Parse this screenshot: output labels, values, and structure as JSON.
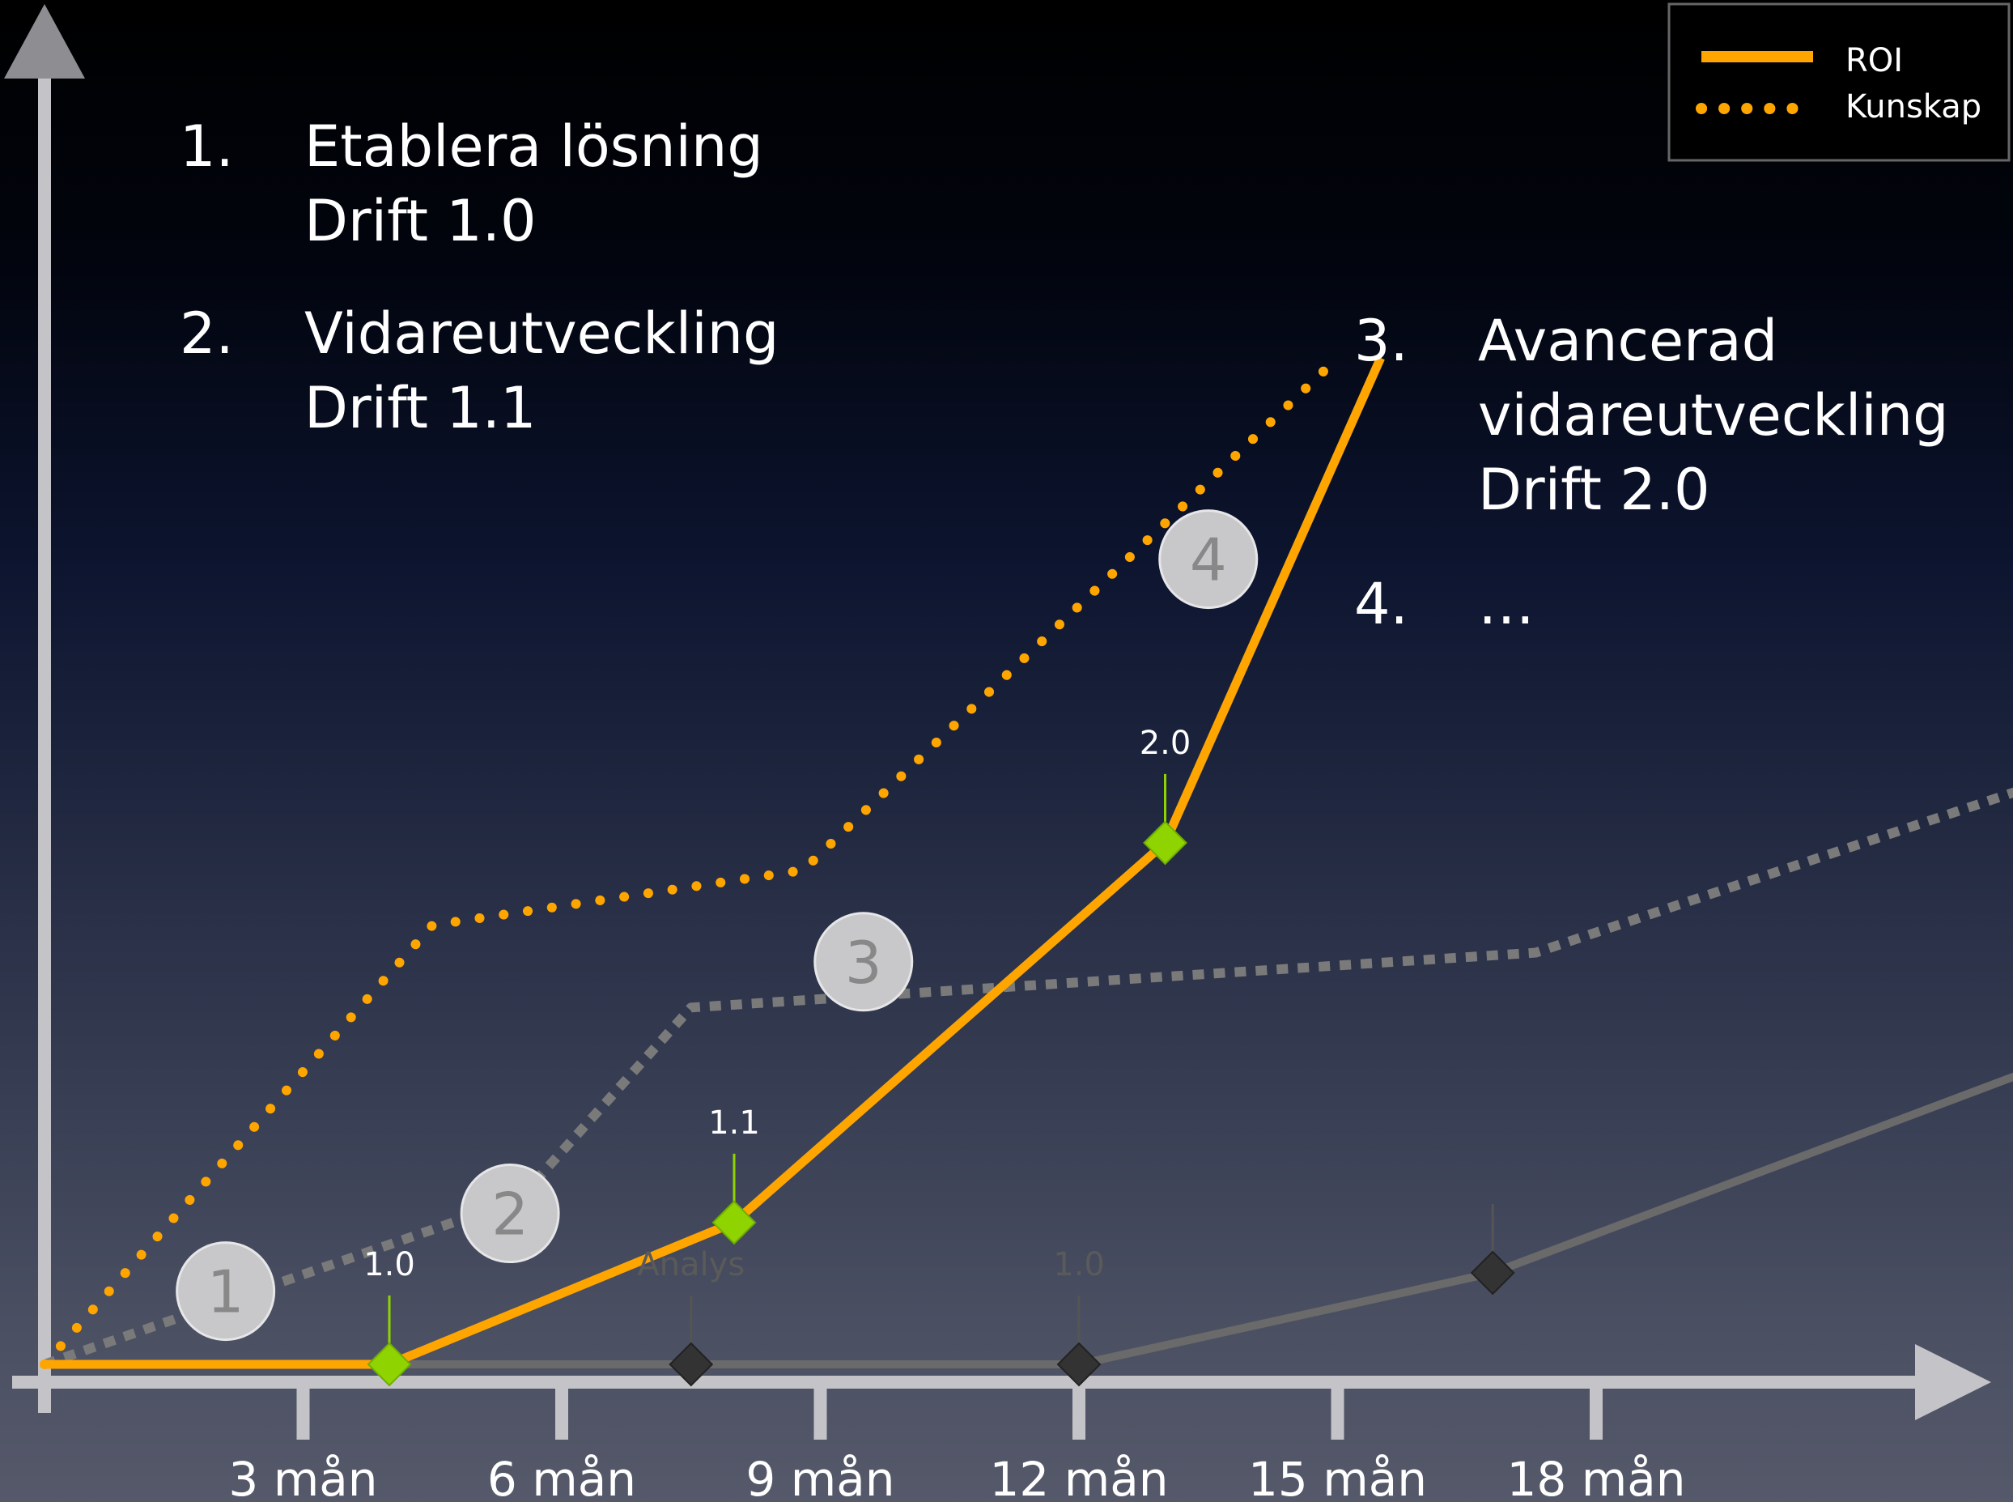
{
  "chart_data": {
    "type": "line",
    "x_tick_labels": [
      "3 mån",
      "6 mån",
      "9 mån",
      "12 mån",
      "15 mån",
      "18 mån"
    ],
    "x_ticks": [
      3,
      6,
      9,
      12,
      15,
      18
    ],
    "xlim": [
      0,
      23
    ],
    "ylim": [
      0,
      100
    ],
    "legend": {
      "placement": "top-right",
      "items": [
        {
          "label": "ROI",
          "style": "solid",
          "color": "#ffa500"
        },
        {
          "label": "Kunskap",
          "style": "dotted",
          "color": "#ffa500"
        }
      ]
    },
    "series": [
      {
        "name": "ROI",
        "style": "solid",
        "color": "#ffa500",
        "x": [
          0,
          4,
          8,
          13,
          15.5
        ],
        "y": [
          0,
          0,
          15.5,
          57,
          110
        ]
      },
      {
        "name": "Kunskap",
        "style": "dotted",
        "color": "#ffa500",
        "x": [
          0,
          4.5,
          8.8,
          15
        ],
        "y": [
          0,
          48,
          54,
          110
        ]
      },
      {
        "style": "dotted",
        "color": "#7a7a7a",
        "x": [
          0,
          5.5,
          7.5,
          17.3,
          23
        ],
        "y": [
          0,
          18,
          39,
          45,
          63
        ]
      },
      {
        "style": "solid",
        "color": "#6a6a6a",
        "x": [
          0,
          12,
          16.8,
          23
        ],
        "y": [
          0,
          0,
          10,
          32
        ]
      }
    ],
    "milestones": [
      {
        "label": "1.0",
        "x": 4,
        "y": 0,
        "color": "#8fd400",
        "label_style": "bright"
      },
      {
        "label": "1.1",
        "x": 8,
        "y": 15.5,
        "color": "#8fd400",
        "label_style": "bright"
      },
      {
        "label": "2.0",
        "x": 13,
        "y": 57,
        "color": "#8fd400",
        "label_style": "bright"
      },
      {
        "label": "Analys",
        "x": 7.5,
        "y": 0,
        "color": "#333333",
        "label_style": "dim"
      },
      {
        "label": "1.0",
        "x": 12,
        "y": 0,
        "color": "#333333",
        "label_style": "dim"
      },
      {
        "label": "",
        "x": 16.8,
        "y": 10,
        "color": "#333333",
        "label_style": "dim"
      }
    ],
    "phase_markers": [
      {
        "label": "1",
        "x": 2.1,
        "y": 8
      },
      {
        "label": "2",
        "x": 5.4,
        "y": 16.5
      },
      {
        "label": "3",
        "x": 9.5,
        "y": 44
      },
      {
        "label": "4",
        "x": 13.5,
        "y": 88
      }
    ]
  },
  "list_left": [
    {
      "num": "1.",
      "lines": [
        "Etablera lösning",
        "Drift 1.0"
      ]
    },
    {
      "num": "2.",
      "lines": [
        "Vidareutveckling",
        "Drift 1.1"
      ]
    }
  ],
  "list_right": [
    {
      "num": "3.",
      "lines": [
        "Avancerad",
        "vidareutveckling",
        "Drift 2.0"
      ]
    },
    {
      "num": "4.",
      "lines": [
        "…"
      ]
    }
  ]
}
